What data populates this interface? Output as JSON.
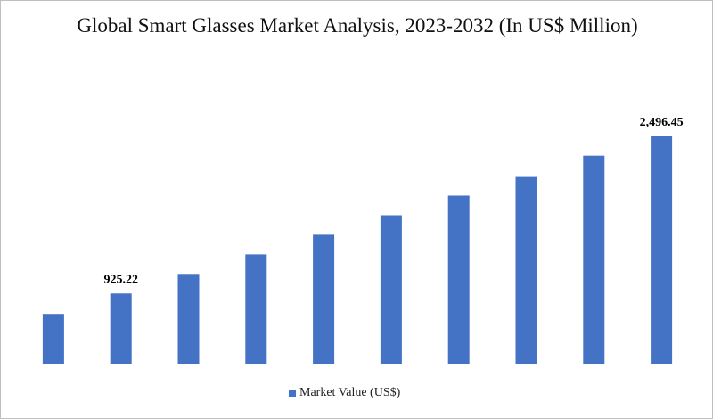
{
  "chart_data": {
    "type": "bar",
    "title": "Global Smart Glasses Market Analysis, 2023-2032 (In US$ Million)",
    "categories": [
      null,
      null,
      null,
      null,
      null,
      null,
      null,
      null,
      null,
      null
    ],
    "series": [
      {
        "name": "Market Value (US$)",
        "color": "#4472c4",
        "values": [
          721,
          925.22,
          1121,
          1316,
          1512,
          1707,
          1903,
          2098,
          2302,
          2496.45
        ],
        "value_labels": [
          null,
          "925.22",
          null,
          null,
          null,
          null,
          null,
          null,
          null,
          "2,496.45"
        ]
      }
    ],
    "ylim": [
      224,
      2700
    ],
    "grid": false,
    "legend": "bottom"
  }
}
